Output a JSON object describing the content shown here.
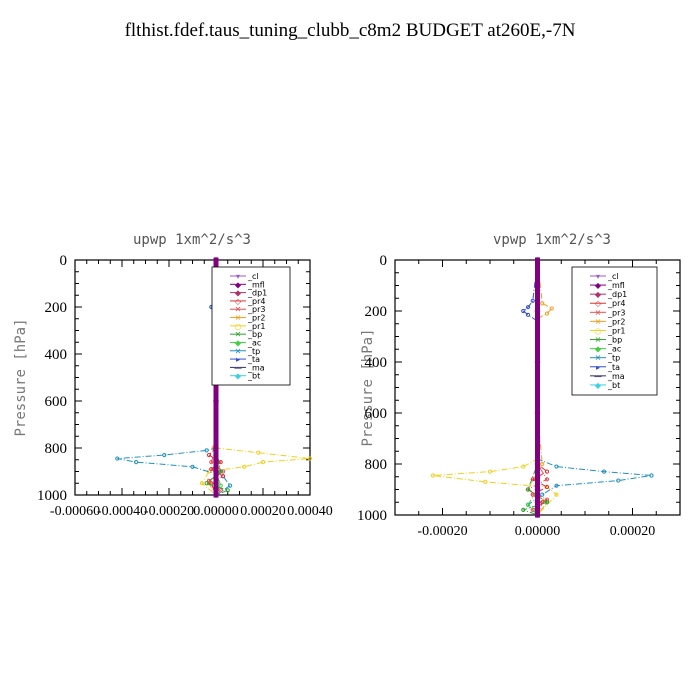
{
  "title": "flthist.fdef.taus_tuning_clubb_c8m2  BUDGET at260E,-7N",
  "chart_data": [
    {
      "type": "line",
      "title": "upwp   1xm^2/s^3",
      "ylabel": "Pressure [hPa]",
      "xlim": [
        -0.0006,
        0.0004
      ],
      "ylim": [
        1000,
        0
      ],
      "yticks": [
        "0",
        "200",
        "400",
        "600",
        "800",
        "1000"
      ],
      "ytick_values": [
        0,
        200,
        400,
        600,
        800,
        1000
      ],
      "xticks": [
        "-0.00060",
        "-0.00040",
        "-0.00020",
        "0.00000",
        "0.00020",
        "0.00040"
      ],
      "xtick_values": [
        -0.0006,
        -0.0004,
        -0.0002,
        0.0,
        0.0002,
        0.0004
      ],
      "legend": [
        "_cl",
        "_mfl",
        "_dp1",
        "_pr4",
        "_pr3",
        "_pr2",
        "_pr1",
        "_bp",
        "_ac",
        "_tp",
        "_ta",
        "_ma",
        "_bt"
      ],
      "series": [
        {
          "name": "_cl",
          "color": "#9b59d0",
          "p": [
            0,
            200,
            400,
            600,
            800,
            850,
            900,
            950,
            1000
          ],
          "x": [
            0,
            0,
            0,
            0,
            0,
            0,
            0,
            0,
            0
          ]
        },
        {
          "name": "_mfl",
          "color": "#800080",
          "p": [
            0,
            200,
            400,
            600,
            800,
            850,
            900,
            950,
            1000
          ],
          "x": [
            0,
            0,
            0,
            0,
            0,
            0,
            0,
            0,
            0
          ]
        },
        {
          "name": "_dp1",
          "color": "#b0306a",
          "p": [
            0,
            200,
            400,
            600,
            800,
            900,
            1000
          ],
          "x": [
            0,
            0,
            0,
            0,
            0,
            0,
            0
          ]
        },
        {
          "name": "_pr4",
          "color": "#e03030",
          "p": [
            0,
            600,
            800,
            830,
            860,
            890,
            920,
            950,
            1000
          ],
          "x": [
            0,
            0,
            0,
            -3e-05,
            2e-05,
            -2e-05,
            3e-05,
            -2e-05,
            0
          ]
        },
        {
          "name": "_pr3",
          "color": "#e05050",
          "p": [
            0,
            600,
            800,
            860,
            900,
            940,
            980,
            1000
          ],
          "x": [
            0,
            0,
            0,
            -2e-05,
            3e-05,
            -3e-05,
            2e-05,
            0
          ]
        },
        {
          "name": "_pr2",
          "color": "#f0a020",
          "p": [
            0,
            180,
            200,
            220,
            600,
            800,
            900,
            950,
            1000
          ],
          "x": [
            0,
            1e-05,
            2e-05,
            0,
            0,
            -1e-05,
            2e-05,
            -3e-05,
            0
          ]
        },
        {
          "name": "_pr1",
          "color": "#f0d020",
          "p": [
            0,
            600,
            800,
            820,
            845,
            860,
            880,
            900,
            950,
            1000
          ],
          "x": [
            0,
            0,
            0,
            0.00018,
            0.0004,
            0.0002,
            0.00012,
            -3e-05,
            -6e-05,
            0
          ]
        },
        {
          "name": "_bp",
          "color": "#30a030",
          "p": [
            0,
            600,
            800,
            900,
            950,
            980,
            1000
          ],
          "x": [
            0,
            0,
            0,
            2e-05,
            -4e-05,
            5e-05,
            0
          ]
        },
        {
          "name": "_ac",
          "color": "#40d040",
          "p": [
            0,
            600,
            900,
            960,
            1000
          ],
          "x": [
            0,
            0,
            0,
            2e-05,
            0
          ]
        },
        {
          "name": "_tp",
          "color": "#2090c0",
          "p": [
            0,
            600,
            800,
            810,
            830,
            845,
            860,
            880,
            920,
            960,
            1000
          ],
          "x": [
            0,
            0,
            0,
            -4e-05,
            -0.00022,
            -0.00042,
            -0.00034,
            -0.0001,
            3e-05,
            6e-05,
            0
          ]
        },
        {
          "name": "_ta",
          "color": "#3050d0",
          "p": [
            0,
            195,
            200,
            205,
            600,
            1000
          ],
          "x": [
            0,
            -1e-05,
            -2e-05,
            -1e-05,
            0,
            0
          ]
        },
        {
          "name": "_ma",
          "color": "#303060",
          "p": [
            0,
            1000
          ],
          "x": [
            0,
            0
          ]
        },
        {
          "name": "_bt",
          "color": "#40d0e0",
          "p": [
            0,
            1000
          ],
          "x": [
            0,
            0
          ]
        }
      ]
    },
    {
      "type": "line",
      "title": "vpwp   1xm^2/s^3",
      "ylabel": "Pressure [hPa]",
      "xlim": [
        -0.0003,
        0.0003
      ],
      "ylim": [
        1000,
        0
      ],
      "yticks": [
        "0",
        "200",
        "400",
        "600",
        "800",
        "1000"
      ],
      "ytick_values": [
        0,
        200,
        400,
        600,
        800,
        1000
      ],
      "xticks": [
        "-0.00020",
        "0.00000",
        "0.00020"
      ],
      "xtick_values": [
        -0.0002,
        0.0,
        0.0002
      ],
      "legend": [
        "_cl",
        "_mfl",
        "_dp1",
        "_pr4",
        "_pr3",
        "_pr2",
        "_pr1",
        "_bp",
        "_ac",
        "_tp",
        "_ta",
        "_ma",
        "_bt"
      ],
      "series": [
        {
          "name": "_cl",
          "color": "#9b59d0",
          "p": [
            0,
            200,
            400,
            600,
            800,
            850,
            900,
            950,
            1000
          ],
          "x": [
            0,
            0,
            0,
            0,
            0,
            0,
            0,
            0,
            0
          ]
        },
        {
          "name": "_mfl",
          "color": "#800080",
          "p": [
            0,
            200,
            400,
            600,
            800,
            850,
            900,
            950,
            1000
          ],
          "x": [
            0,
            0,
            0,
            0,
            0,
            0,
            0,
            0,
            0
          ]
        },
        {
          "name": "_dp1",
          "color": "#b0306a",
          "p": [
            0,
            200,
            400,
            600,
            800,
            900,
            1000
          ],
          "x": [
            0,
            0,
            0,
            0,
            0,
            0,
            0
          ]
        },
        {
          "name": "_pr4",
          "color": "#e03030",
          "p": [
            0,
            600,
            800,
            830,
            860,
            890,
            920,
            950,
            1000
          ],
          "x": [
            0,
            0,
            0,
            2e-05,
            -1e-05,
            2e-05,
            -1e-05,
            1e-05,
            0
          ]
        },
        {
          "name": "_pr3",
          "color": "#e05050",
          "p": [
            0,
            600,
            800,
            860,
            900,
            940,
            980,
            1000
          ],
          "x": [
            0,
            0,
            0,
            2e-05,
            -2e-05,
            2e-05,
            -1e-05,
            0
          ]
        },
        {
          "name": "_pr2",
          "color": "#f0a020",
          "p": [
            0,
            170,
            190,
            210,
            230,
            600,
            800,
            900,
            950,
            1000
          ],
          "x": [
            0,
            1e-05,
            3e-05,
            2e-05,
            0,
            0,
            1e-05,
            -2e-05,
            2e-05,
            0
          ]
        },
        {
          "name": "_pr1",
          "color": "#f0d020",
          "p": [
            0,
            600,
            780,
            810,
            830,
            845,
            870,
            890,
            920,
            1000
          ],
          "x": [
            0,
            0,
            0,
            -3e-05,
            -0.0001,
            -0.00022,
            -0.00011,
            2e-05,
            4e-05,
            0
          ]
        },
        {
          "name": "_bp",
          "color": "#30a030",
          "p": [
            0,
            600,
            800,
            900,
            950,
            980,
            1000
          ],
          "x": [
            0,
            0,
            0,
            -2e-05,
            2e-05,
            -3e-05,
            0
          ]
        },
        {
          "name": "_ac",
          "color": "#40d040",
          "p": [
            0,
            600,
            900,
            960,
            1000
          ],
          "x": [
            0,
            0,
            0,
            -2e-05,
            0
          ]
        },
        {
          "name": "_tp",
          "color": "#2090c0",
          "p": [
            0,
            600,
            780,
            810,
            830,
            845,
            865,
            885,
            920,
            960,
            1000
          ],
          "x": [
            0,
            0,
            0,
            4e-05,
            0.00014,
            0.00024,
            0.00017,
            4e-05,
            1e-05,
            -2e-05,
            0
          ]
        },
        {
          "name": "_ta",
          "color": "#3050d0",
          "p": [
            0,
            160,
            185,
            200,
            215,
            240,
            600,
            1000
          ],
          "x": [
            0,
            -1e-05,
            -2e-05,
            -3e-05,
            -2e-05,
            0,
            0,
            0
          ]
        },
        {
          "name": "_ma",
          "color": "#303060",
          "p": [
            0,
            1000
          ],
          "x": [
            0,
            0
          ]
        },
        {
          "name": "_bt",
          "color": "#40d0e0",
          "p": [
            0,
            1000
          ],
          "x": [
            0,
            0
          ]
        }
      ]
    }
  ]
}
